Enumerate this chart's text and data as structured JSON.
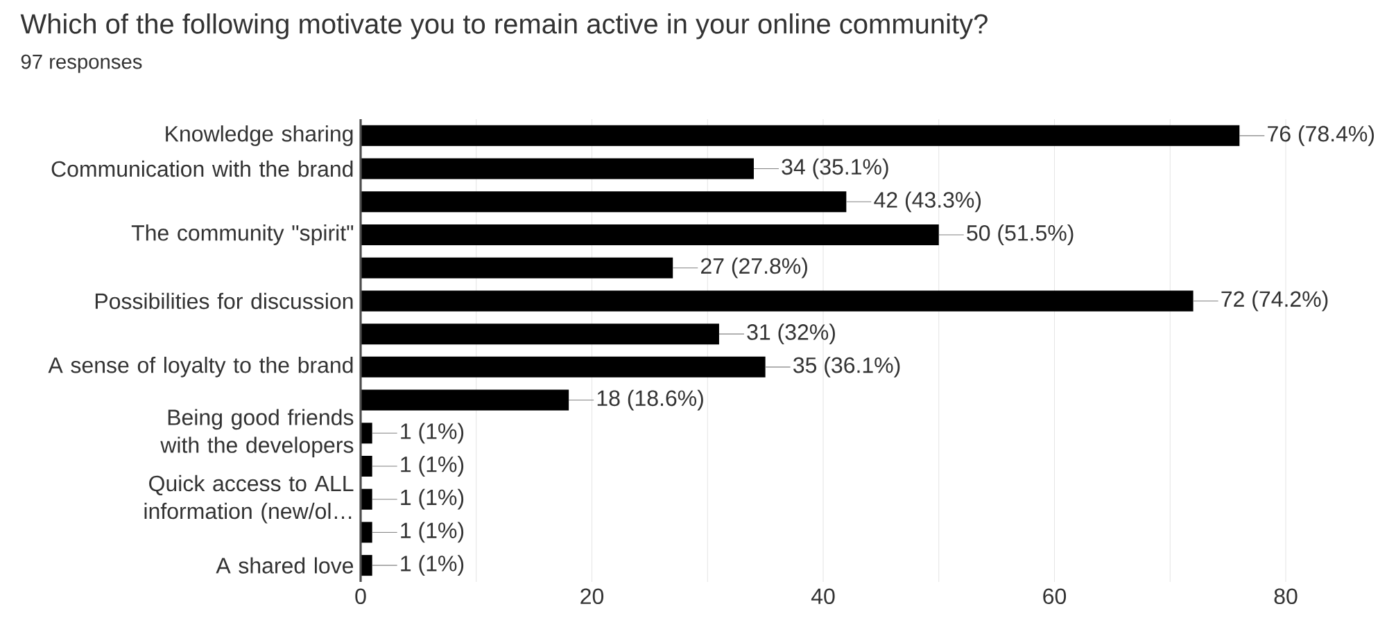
{
  "chart_data": {
    "type": "bar",
    "orientation": "horizontal",
    "title": "Which of the following motivate you to remain active in your online community?",
    "subtitle": "97 responses",
    "categories": [
      "Knowledge sharing",
      "Communication with the brand",
      null,
      "The community \"spirit\"",
      null,
      "Possibilities for discussion",
      null,
      "A sense of loyalty to the brand",
      null,
      "Being good friends with the developers",
      null,
      "Quick access to ALL information (new/ol…",
      null,
      "A shared love"
    ],
    "values": [
      76,
      34,
      42,
      50,
      27,
      72,
      31,
      35,
      18,
      1,
      1,
      1,
      1,
      1
    ],
    "value_labels": [
      "76 (78.4%)",
      "34 (35.1%)",
      "42 (43.3%)",
      "50 (51.5%)",
      "27 (27.8%)",
      "72 (74.2%)",
      "31 (32%)",
      "35 (36.1%)",
      "18 (18.6%)",
      "1 (1%)",
      "1 (1%)",
      "1 (1%)",
      "1 (1%)",
      "1 (1%)"
    ],
    "color": "#000000",
    "xlim": [
      0,
      80
    ],
    "xticks": [
      0,
      {
        "value": 10,
        "label": null
      },
      20,
      {
        "value": 30,
        "label": null
      },
      40,
      {
        "value": 50,
        "label": null
      },
      60,
      {
        "value": 70,
        "label": null
      },
      80
    ],
    "grid": "x"
  }
}
